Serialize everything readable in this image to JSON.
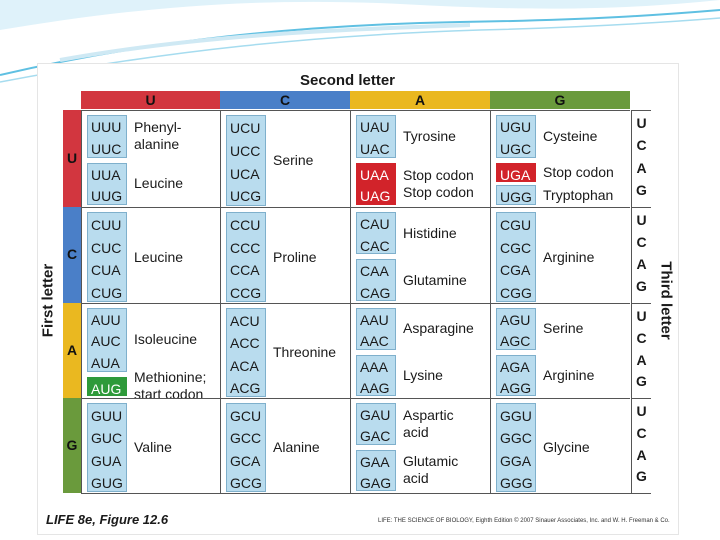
{
  "title": "Second letter",
  "first_letter_label": "First letter",
  "third_letter_label": "Third letter",
  "columns": [
    "U",
    "C",
    "A",
    "G"
  ],
  "column_colors": [
    "#d2363f",
    "#4a7fc8",
    "#eab820",
    "#6a9a3c"
  ],
  "rows": [
    "U",
    "C",
    "A",
    "G"
  ],
  "row_colors": [
    "#d2363f",
    "#4a7fc8",
    "#eab820",
    "#6a9a3c"
  ],
  "third_letters": [
    "U",
    "C",
    "A",
    "G"
  ],
  "cells": [
    [
      {
        "groups": [
          {
            "codons": [
              "UUU",
              "UUC"
            ],
            "label": "Phenyl-\nalanine"
          },
          {
            "codons": [
              "UUA",
              "UUG"
            ],
            "label": "Leucine"
          }
        ]
      },
      {
        "groups": [
          {
            "codons": [
              "UCU",
              "UCC",
              "UCA",
              "UCG"
            ],
            "label": "Serine"
          }
        ]
      },
      {
        "groups": [
          {
            "codons": [
              "UAU",
              "UAC"
            ],
            "label": "Tyrosine"
          },
          {
            "codons": [
              "UAA",
              "UAG"
            ],
            "label": "Stop codon\nStop codon",
            "highlight": "red"
          }
        ]
      },
      {
        "groups": [
          {
            "codons": [
              "UGU",
              "UGC"
            ],
            "label": "Cysteine"
          },
          {
            "codons": [
              "UGA"
            ],
            "label": "Stop codon",
            "highlight": "red"
          },
          {
            "codons": [
              "UGG"
            ],
            "label": "Tryptophan"
          }
        ]
      }
    ],
    [
      {
        "groups": [
          {
            "codons": [
              "CUU",
              "CUC",
              "CUA",
              "CUG"
            ],
            "label": "Leucine"
          }
        ]
      },
      {
        "groups": [
          {
            "codons": [
              "CCU",
              "CCC",
              "CCA",
              "CCG"
            ],
            "label": "Proline"
          }
        ]
      },
      {
        "groups": [
          {
            "codons": [
              "CAU",
              "CAC"
            ],
            "label": "Histidine"
          },
          {
            "codons": [
              "CAA",
              "CAG"
            ],
            "label": "Glutamine"
          }
        ]
      },
      {
        "groups": [
          {
            "codons": [
              "CGU",
              "CGC",
              "CGA",
              "CGG"
            ],
            "label": "Arginine"
          }
        ]
      }
    ],
    [
      {
        "groups": [
          {
            "codons": [
              "AUU",
              "AUC",
              "AUA"
            ],
            "label": "Isoleucine"
          },
          {
            "codons": [
              "AUG"
            ],
            "label": "Methionine;\nstart codon",
            "highlight": "green"
          }
        ]
      },
      {
        "groups": [
          {
            "codons": [
              "ACU",
              "ACC",
              "ACA",
              "ACG"
            ],
            "label": "Threonine"
          }
        ]
      },
      {
        "groups": [
          {
            "codons": [
              "AAU",
              "AAC"
            ],
            "label": "Asparagine"
          },
          {
            "codons": [
              "AAA",
              "AAG"
            ],
            "label": "Lysine"
          }
        ]
      },
      {
        "groups": [
          {
            "codons": [
              "AGU",
              "AGC"
            ],
            "label": "Serine"
          },
          {
            "codons": [
              "AGA",
              "AGG"
            ],
            "label": "Arginine"
          }
        ]
      }
    ],
    [
      {
        "groups": [
          {
            "codons": [
              "GUU",
              "GUC",
              "GUA",
              "GUG"
            ],
            "label": "Valine"
          }
        ]
      },
      {
        "groups": [
          {
            "codons": [
              "GCU",
              "GCC",
              "GCA",
              "GCG"
            ],
            "label": "Alanine"
          }
        ]
      },
      {
        "groups": [
          {
            "codons": [
              "GAU",
              "GAC"
            ],
            "label": "Aspartic\nacid"
          },
          {
            "codons": [
              "GAA",
              "GAG"
            ],
            "label": "Glutamic\nacid"
          }
        ]
      },
      {
        "groups": [
          {
            "codons": [
              "GGU",
              "GGC",
              "GGA",
              "GGG"
            ],
            "label": "Glycine"
          }
        ]
      }
    ]
  ],
  "caption": "LIFE 8e, Figure 12.6",
  "credit": "LIFE: THE SCIENCE OF BIOLOGY, Eighth Edition © 2007 Sinauer Associates, Inc. and W. H. Freeman & Co."
}
